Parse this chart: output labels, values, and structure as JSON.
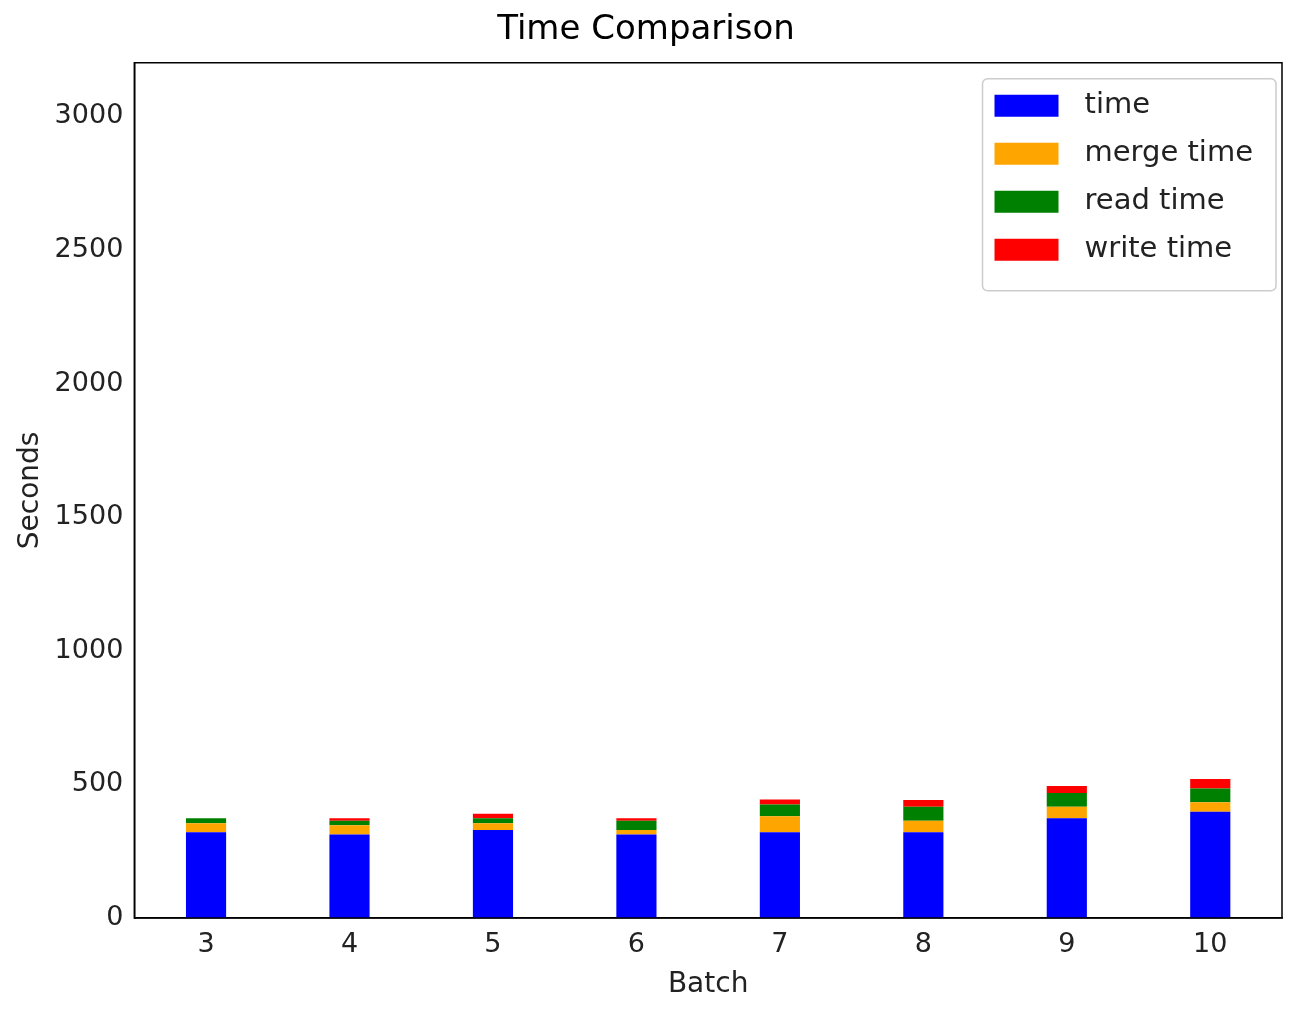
{
  "chart_data": {
    "type": "bar",
    "title": "Time Comparison",
    "xlabel": "Batch",
    "ylabel": "Seconds",
    "categories": [
      "3",
      "4",
      "5",
      "6",
      "7",
      "8",
      "9",
      "10"
    ],
    "series": [
      {
        "name": "time",
        "color": "#0000ff",
        "values": [
          321,
          312,
          329,
          312,
          321,
          321,
          373,
          398
        ]
      },
      {
        "name": "merge time",
        "color": "#ffa500",
        "values": [
          34,
          35,
          26,
          17,
          60,
          43,
          43,
          35
        ]
      },
      {
        "name": "read time",
        "color": "#008000",
        "values": [
          18,
          17,
          18,
          35,
          44,
          52,
          52,
          52
        ]
      },
      {
        "name": "write time",
        "color": "#ff0000",
        "values": [
          0,
          9,
          17,
          9,
          18,
          26,
          26,
          35
        ]
      }
    ],
    "stacked": true,
    "ylim": [
      0,
      3200
    ],
    "yticks": [
      0,
      500,
      1000,
      1500,
      2000,
      2500,
      3000
    ],
    "grid": false,
    "legend": "top right"
  }
}
